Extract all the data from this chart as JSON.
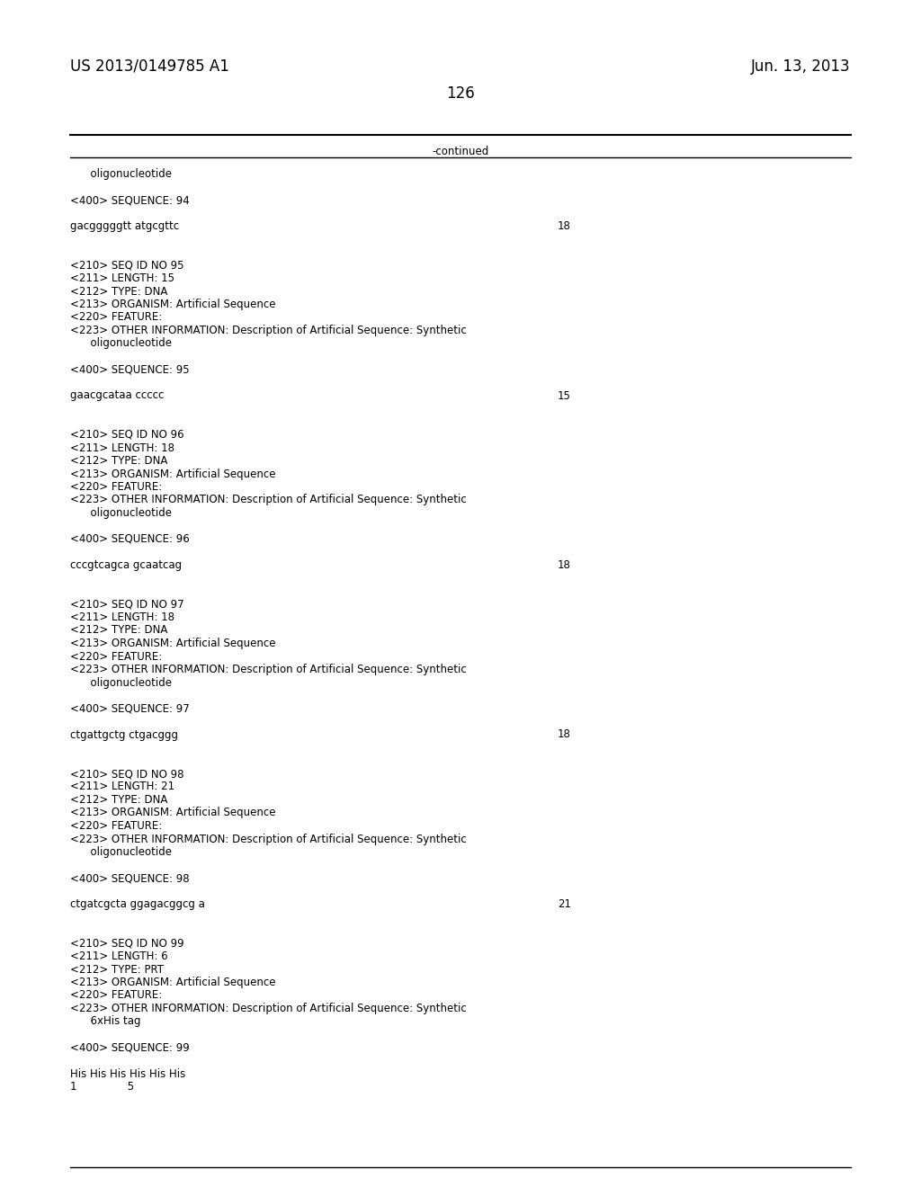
{
  "header_left": "US 2013/0149785 A1",
  "header_right": "Jun. 13, 2013",
  "page_number": "126",
  "continued_label": "-continued",
  "background_color": "#ffffff",
  "text_color": "#000000",
  "font_size_header": 12,
  "font_size_body": 8.5,
  "lines": [
    {
      "text": "      oligonucleotide",
      "num": ""
    },
    {
      "text": "",
      "num": ""
    },
    {
      "text": "<400> SEQUENCE: 94",
      "num": ""
    },
    {
      "text": "",
      "num": ""
    },
    {
      "text": "gacgggggtt atgcgttc",
      "num": "18"
    },
    {
      "text": "",
      "num": ""
    },
    {
      "text": "",
      "num": ""
    },
    {
      "text": "<210> SEQ ID NO 95",
      "num": ""
    },
    {
      "text": "<211> LENGTH: 15",
      "num": ""
    },
    {
      "text": "<212> TYPE: DNA",
      "num": ""
    },
    {
      "text": "<213> ORGANISM: Artificial Sequence",
      "num": ""
    },
    {
      "text": "<220> FEATURE:",
      "num": ""
    },
    {
      "text": "<223> OTHER INFORMATION: Description of Artificial Sequence: Synthetic",
      "num": ""
    },
    {
      "text": "      oligonucleotide",
      "num": ""
    },
    {
      "text": "",
      "num": ""
    },
    {
      "text": "<400> SEQUENCE: 95",
      "num": ""
    },
    {
      "text": "",
      "num": ""
    },
    {
      "text": "gaacgcataa ccccc",
      "num": "15"
    },
    {
      "text": "",
      "num": ""
    },
    {
      "text": "",
      "num": ""
    },
    {
      "text": "<210> SEQ ID NO 96",
      "num": ""
    },
    {
      "text": "<211> LENGTH: 18",
      "num": ""
    },
    {
      "text": "<212> TYPE: DNA",
      "num": ""
    },
    {
      "text": "<213> ORGANISM: Artificial Sequence",
      "num": ""
    },
    {
      "text": "<220> FEATURE:",
      "num": ""
    },
    {
      "text": "<223> OTHER INFORMATION: Description of Artificial Sequence: Synthetic",
      "num": ""
    },
    {
      "text": "      oligonucleotide",
      "num": ""
    },
    {
      "text": "",
      "num": ""
    },
    {
      "text": "<400> SEQUENCE: 96",
      "num": ""
    },
    {
      "text": "",
      "num": ""
    },
    {
      "text": "cccgtcagca gcaatcag",
      "num": "18"
    },
    {
      "text": "",
      "num": ""
    },
    {
      "text": "",
      "num": ""
    },
    {
      "text": "<210> SEQ ID NO 97",
      "num": ""
    },
    {
      "text": "<211> LENGTH: 18",
      "num": ""
    },
    {
      "text": "<212> TYPE: DNA",
      "num": ""
    },
    {
      "text": "<213> ORGANISM: Artificial Sequence",
      "num": ""
    },
    {
      "text": "<220> FEATURE:",
      "num": ""
    },
    {
      "text": "<223> OTHER INFORMATION: Description of Artificial Sequence: Synthetic",
      "num": ""
    },
    {
      "text": "      oligonucleotide",
      "num": ""
    },
    {
      "text": "",
      "num": ""
    },
    {
      "text": "<400> SEQUENCE: 97",
      "num": ""
    },
    {
      "text": "",
      "num": ""
    },
    {
      "text": "ctgattgctg ctgacggg",
      "num": "18"
    },
    {
      "text": "",
      "num": ""
    },
    {
      "text": "",
      "num": ""
    },
    {
      "text": "<210> SEQ ID NO 98",
      "num": ""
    },
    {
      "text": "<211> LENGTH: 21",
      "num": ""
    },
    {
      "text": "<212> TYPE: DNA",
      "num": ""
    },
    {
      "text": "<213> ORGANISM: Artificial Sequence",
      "num": ""
    },
    {
      "text": "<220> FEATURE:",
      "num": ""
    },
    {
      "text": "<223> OTHER INFORMATION: Description of Artificial Sequence: Synthetic",
      "num": ""
    },
    {
      "text": "      oligonucleotide",
      "num": ""
    },
    {
      "text": "",
      "num": ""
    },
    {
      "text": "<400> SEQUENCE: 98",
      "num": ""
    },
    {
      "text": "",
      "num": ""
    },
    {
      "text": "ctgatcgcta ggagacggcg a",
      "num": "21"
    },
    {
      "text": "",
      "num": ""
    },
    {
      "text": "",
      "num": ""
    },
    {
      "text": "<210> SEQ ID NO 99",
      "num": ""
    },
    {
      "text": "<211> LENGTH: 6",
      "num": ""
    },
    {
      "text": "<212> TYPE: PRT",
      "num": ""
    },
    {
      "text": "<213> ORGANISM: Artificial Sequence",
      "num": ""
    },
    {
      "text": "<220> FEATURE:",
      "num": ""
    },
    {
      "text": "<223> OTHER INFORMATION: Description of Artificial Sequence: Synthetic",
      "num": ""
    },
    {
      "text": "      6xHis tag",
      "num": ""
    },
    {
      "text": "",
      "num": ""
    },
    {
      "text": "<400> SEQUENCE: 99",
      "num": ""
    },
    {
      "text": "",
      "num": ""
    },
    {
      "text": "His His His His His His",
      "num": ""
    },
    {
      "text": "1               5",
      "num": ""
    }
  ]
}
